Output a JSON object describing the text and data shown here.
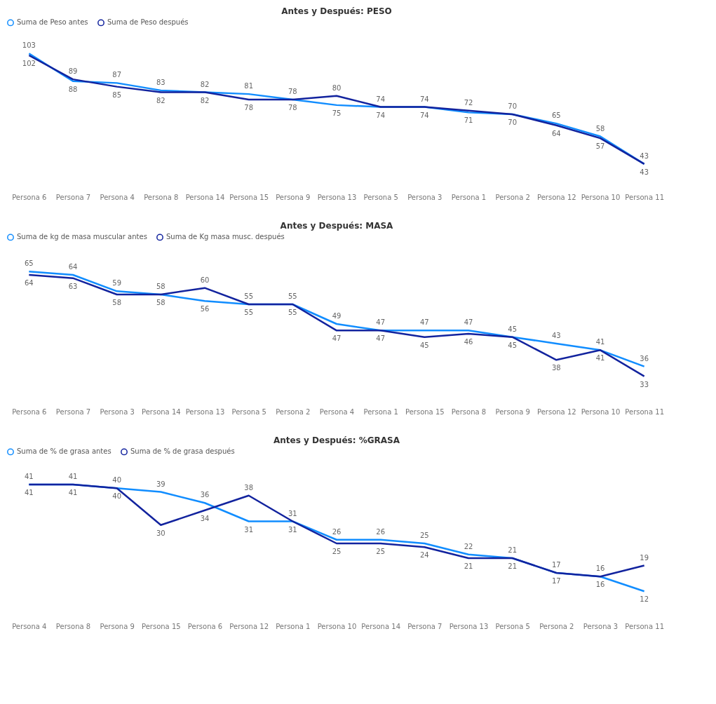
{
  "chart_data": [
    {
      "type": "line",
      "title": "Antes y Después: PESO",
      "legend": "top",
      "tick_labels": "x",
      "grid": false,
      "data_labels": true,
      "categories": [
        "Persona 6",
        "Persona 7",
        "Persona 4",
        "Persona 8",
        "Persona 14",
        "Persona 15",
        "Persona 9",
        "Persona 13",
        "Persona 5",
        "Persona 3",
        "Persona 1",
        "Persona 2",
        "Persona 12",
        "Persona 10",
        "Persona 11"
      ],
      "series": [
        {
          "name": "Suma de Peso antes",
          "color": "#118dff",
          "values": [
            103,
            88,
            87,
            83,
            82,
            81,
            78,
            75,
            74,
            74,
            71,
            70,
            65,
            58,
            43
          ]
        },
        {
          "name": "Suma de Peso después",
          "color": "#12239e",
          "values": [
            102,
            89,
            85,
            82,
            82,
            78,
            78,
            80,
            74,
            74,
            72,
            70,
            64,
            57,
            43
          ]
        }
      ]
    },
    {
      "type": "line",
      "title": "Antes y Después: MASA",
      "legend": "top",
      "tick_labels": "x",
      "grid": false,
      "data_labels": true,
      "categories": [
        "Persona 6",
        "Persona 7",
        "Persona 3",
        "Persona 14",
        "Persona 13",
        "Persona 5",
        "Persona 2",
        "Persona 4",
        "Persona 1",
        "Persona 15",
        "Persona 8",
        "Persona 9",
        "Persona 12",
        "Persona 10",
        "Persona 11"
      ],
      "series": [
        {
          "name": "Suma de kg de masa muscular antes",
          "color": "#118dff",
          "values": [
            65,
            64,
            59,
            58,
            56,
            55,
            55,
            49,
            47,
            47,
            47,
            45,
            43,
            41,
            36
          ]
        },
        {
          "name": "Suma de Kg masa musc. después",
          "color": "#12239e",
          "values": [
            64,
            63,
            58,
            58,
            60,
            55,
            55,
            47,
            47,
            45,
            46,
            45,
            38,
            41,
            33
          ]
        }
      ]
    },
    {
      "type": "line",
      "title": "Antes y Después: %GRASA",
      "legend": "top",
      "tick_labels": "x",
      "grid": false,
      "data_labels": true,
      "categories": [
        "Persona 4",
        "Persona 8",
        "Persona 9",
        "Persona 15",
        "Persona 6",
        "Persona 12",
        "Persona 1",
        "Persona 10",
        "Persona 14",
        "Persona 7",
        "Persona 13",
        "Persona 5",
        "Persona 2",
        "Persona 3",
        "Persona 11"
      ],
      "series": [
        {
          "name": "Suma de % de grasa antes",
          "color": "#118dff",
          "values": [
            41,
            41,
            40,
            39,
            36,
            31,
            31,
            26,
            26,
            25,
            22,
            21,
            17,
            16,
            12
          ]
        },
        {
          "name": "Suma de % de grasa después",
          "color": "#12239e",
          "values": [
            41,
            41,
            40,
            30,
            34,
            38,
            31,
            25,
            25,
            24,
            21,
            21,
            17,
            16,
            19
          ]
        }
      ]
    }
  ]
}
